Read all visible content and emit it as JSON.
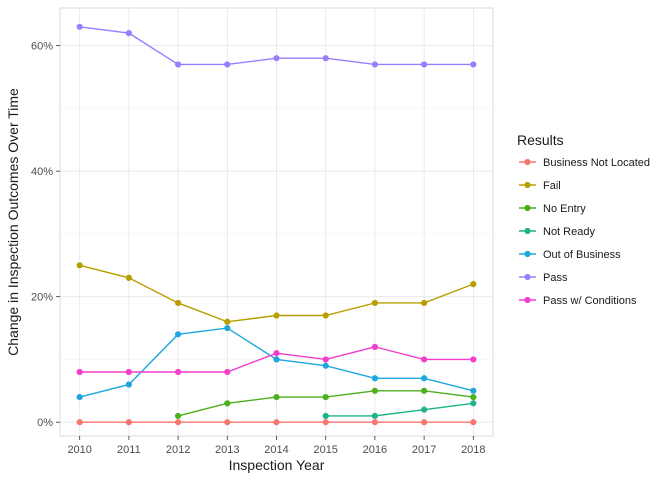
{
  "chart_data": {
    "type": "line",
    "xlabel": "Inspection Year",
    "ylabel": "Change in Inspection Outcomes Over Time",
    "legend_title": "Results",
    "legend_position": "right",
    "grid": true,
    "x_ticks": [
      2010,
      2011,
      2012,
      2013,
      2014,
      2015,
      2016,
      2017,
      2018
    ],
    "x_tick_labels": [
      "2010",
      "2011",
      "2012",
      "2013",
      "2014",
      "2015",
      "2016",
      "2017",
      "2018"
    ],
    "y_ticks": [
      0,
      20,
      40,
      60
    ],
    "y_tick_labels": [
      "0%",
      "20%",
      "40%",
      "60%"
    ],
    "xlim": [
      2009.6,
      2018.4
    ],
    "ylim": [
      -2.2,
      66.0
    ],
    "series": [
      {
        "name": "Business Not Located",
        "color": "#F8766D",
        "x": [
          2010,
          2011,
          2012,
          2013,
          2014,
          2015,
          2016,
          2017,
          2018
        ],
        "values": [
          0,
          0,
          0,
          0,
          0,
          0,
          0,
          0,
          0
        ]
      },
      {
        "name": "Fail",
        "color": "#B79F00",
        "x": [
          2010,
          2011,
          2012,
          2013,
          2014,
          2015,
          2016,
          2017,
          2018
        ],
        "values": [
          25,
          23,
          19,
          16,
          17,
          17,
          19,
          19,
          22
        ]
      },
      {
        "name": "No Entry",
        "color": "#4DAF1A",
        "x": [
          2012,
          2013,
          2014,
          2015,
          2016,
          2017,
          2018
        ],
        "values": [
          1,
          3,
          4,
          4,
          5,
          5,
          4
        ]
      },
      {
        "name": "Not Ready",
        "color": "#1FB38A",
        "x": [
          2015,
          2016,
          2017,
          2018
        ],
        "values": [
          1,
          1,
          2,
          3
        ]
      },
      {
        "name": "Out of Business",
        "color": "#1EA7DE",
        "x": [
          2010,
          2011,
          2012,
          2013,
          2014,
          2015,
          2016,
          2017,
          2018
        ],
        "values": [
          4,
          6,
          14,
          15,
          10,
          9,
          7,
          7,
          5
        ]
      },
      {
        "name": "Pass",
        "color": "#9B7EFF",
        "x": [
          2010,
          2011,
          2012,
          2013,
          2014,
          2015,
          2016,
          2017,
          2018
        ],
        "values": [
          63,
          62,
          57,
          57,
          58,
          58,
          57,
          57,
          57
        ]
      },
      {
        "name": "Pass w/ Conditions",
        "color": "#F23FCB",
        "x": [
          2010,
          2011,
          2012,
          2013,
          2014,
          2015,
          2016,
          2017,
          2018
        ],
        "values": [
          8,
          8,
          8,
          8,
          11,
          10,
          12,
          10,
          10
        ]
      }
    ]
  }
}
